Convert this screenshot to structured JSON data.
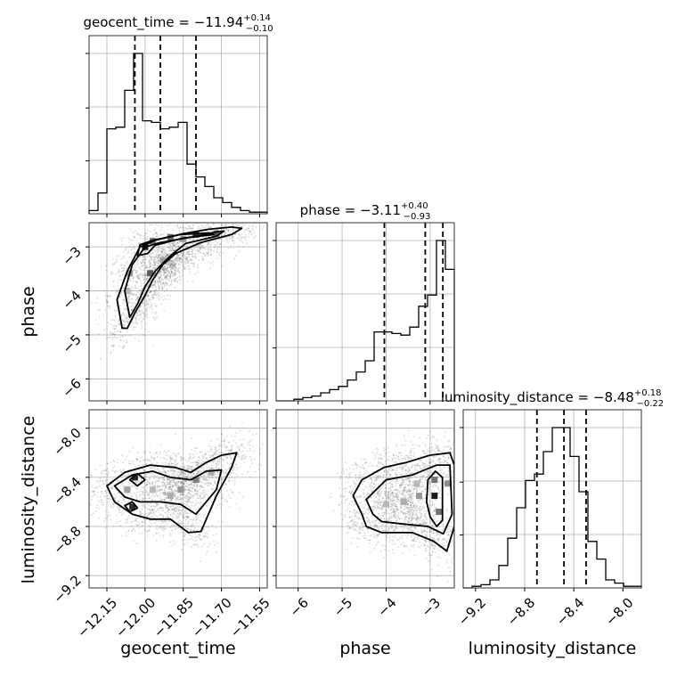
{
  "chart_data": {
    "type": "corner",
    "parameters": [
      {
        "name": "geocent_time",
        "axis_label": "geocent_time",
        "title": {
          "prefix": "geocent_time = ",
          "value": "−11.94",
          "plus": "+0.14",
          "minus": "−0.10"
        },
        "range": [
          -12.22,
          -11.52
        ],
        "ticks": [
          -12.15,
          -12.0,
          -11.85,
          -11.7,
          -11.55
        ],
        "tick_labels": [
          "−12.15",
          "−12.00",
          "−11.85",
          "−11.70",
          "−11.55"
        ],
        "quantiles": [
          -12.04,
          -11.94,
          -11.8
        ],
        "hist": {
          "edges_start": -12.22,
          "bin_width": 0.035,
          "counts": [
            2,
            13,
            53,
            54,
            77,
            100,
            58,
            57,
            53,
            54,
            57,
            31,
            23,
            17,
            10,
            7,
            4,
            2,
            1,
            1
          ]
        }
      },
      {
        "name": "phase",
        "axis_label": "phase",
        "title": {
          "prefix": "phase = ",
          "value": "−3.11",
          "plus": "+0.40",
          "minus": "−0.93"
        },
        "range": [
          -6.5,
          -2.45
        ],
        "ticks": [
          -6,
          -5,
          -4,
          -3
        ],
        "tick_labels": [
          "−6",
          "−5",
          "−4",
          "−3"
        ],
        "quantiles": [
          -4.04,
          -3.11,
          -2.71
        ],
        "hist": {
          "edges_start": -6.5,
          "bin_width": 0.2025,
          "counts": [
            0,
            0,
            1,
            2,
            3,
            5,
            7,
            9,
            13,
            18,
            25,
            43,
            43,
            42,
            41,
            46,
            59,
            66,
            100,
            82
          ]
        }
      },
      {
        "name": "luminosity_distance",
        "axis_label": "luminosity_distance",
        "title": {
          "prefix": "luminosity_distance = ",
          "value": "−8.48",
          "plus": "+0.18",
          "minus": "−0.22"
        },
        "range": [
          -9.3,
          -7.85
        ],
        "ticks": [
          -9.2,
          -8.8,
          -8.4,
          -8.0
        ],
        "tick_labels": [
          "−9.2",
          "−8.8",
          "−8.4",
          "−8.0"
        ],
        "quantiles": [
          -8.7,
          -8.48,
          -8.3
        ],
        "hist": {
          "edges_start": -9.3,
          "bin_width": 0.0725,
          "counts": [
            0,
            1,
            2,
            5,
            14,
            31,
            50,
            67,
            71,
            85,
            100,
            100,
            82,
            60,
            29,
            18,
            5,
            3,
            1,
            1
          ]
        }
      }
    ],
    "pairs": [
      {
        "x": "geocent_time",
        "y": "phase",
        "y_ticks": [
          -6,
          -5,
          -4,
          -3
        ],
        "y_tick_labels": [
          "−6",
          "−5",
          "−4",
          "−3"
        ],
        "contours": [
          [
            [
              -12.09,
              -4.85
            ],
            [
              -12.11,
              -4.2
            ],
            [
              -12.07,
              -3.55
            ],
            [
              -12.02,
              -3.0
            ],
            [
              -11.96,
              -2.85
            ],
            [
              -11.85,
              -2.7
            ],
            [
              -11.75,
              -2.6
            ],
            [
              -11.66,
              -2.55
            ],
            [
              -11.62,
              -2.58
            ],
            [
              -11.66,
              -2.72
            ],
            [
              -11.78,
              -2.9
            ],
            [
              -11.88,
              -3.15
            ],
            [
              -11.93,
              -3.4
            ],
            [
              -11.97,
              -3.75
            ],
            [
              -12.0,
              -4.1
            ],
            [
              -12.04,
              -4.5
            ],
            [
              -12.07,
              -4.85
            ]
          ],
          [
            [
              -12.06,
              -4.6
            ],
            [
              -12.08,
              -4.0
            ],
            [
              -12.05,
              -3.4
            ],
            [
              -12.0,
              -3.0
            ],
            [
              -11.94,
              -2.9
            ],
            [
              -11.82,
              -2.78
            ],
            [
              -11.72,
              -2.66
            ],
            [
              -11.69,
              -2.64
            ],
            [
              -11.72,
              -2.76
            ],
            [
              -11.84,
              -2.92
            ],
            [
              -11.9,
              -3.2
            ],
            [
              -11.96,
              -3.55
            ],
            [
              -12.0,
              -3.9
            ],
            [
              -12.03,
              -4.3
            ]
          ],
          [
            [
              -12.03,
              -3.2
            ],
            [
              -12.02,
              -2.95
            ],
            [
              -11.97,
              -2.85
            ],
            [
              -11.86,
              -2.72
            ],
            [
              -11.75,
              -2.68
            ],
            [
              -11.73,
              -2.72
            ],
            [
              -11.85,
              -2.8
            ],
            [
              -11.96,
              -2.96
            ],
            [
              -11.99,
              -3.15
            ]
          ]
        ],
        "density": [
          {
            "x": -12.0,
            "y": -3.0,
            "w": 0.9
          },
          {
            "x": -11.97,
            "y": -2.87,
            "w": 0.5
          },
          {
            "x": -11.9,
            "y": -2.78,
            "w": 0.55
          },
          {
            "x": -11.8,
            "y": -2.72,
            "w": 0.8
          },
          {
            "x": -11.72,
            "y": -2.7,
            "w": 0.6
          },
          {
            "x": -11.85,
            "y": -2.82,
            "w": 0.35
          },
          {
            "x": -12.06,
            "y": -3.6,
            "w": 0.35
          },
          {
            "x": -11.98,
            "y": -3.6,
            "w": 0.6
          },
          {
            "x": -12.07,
            "y": -4.0,
            "w": 0.2
          },
          {
            "x": -11.93,
            "y": -3.3,
            "w": 0.3
          }
        ]
      },
      {
        "x": "geocent_time",
        "y": "luminosity_distance",
        "y_ticks": [
          -9.2,
          -8.8,
          -8.4,
          -8.0
        ],
        "y_tick_labels": [
          "−9.2",
          "−8.8",
          "−8.4",
          "−8.0"
        ],
        "contours": [
          [
            [
              -12.15,
              -8.47
            ],
            [
              -12.08,
              -8.36
            ],
            [
              -11.98,
              -8.3
            ],
            [
              -11.88,
              -8.32
            ],
            [
              -11.82,
              -8.36
            ],
            [
              -11.76,
              -8.28
            ],
            [
              -11.7,
              -8.22
            ],
            [
              -11.64,
              -8.2
            ],
            [
              -11.66,
              -8.32
            ],
            [
              -11.72,
              -8.55
            ],
            [
              -11.78,
              -8.84
            ],
            [
              -11.83,
              -8.85
            ],
            [
              -11.9,
              -8.74
            ],
            [
              -11.98,
              -8.74
            ],
            [
              -12.05,
              -8.7
            ],
            [
              -12.12,
              -8.6
            ]
          ],
          [
            [
              -12.12,
              -8.47
            ],
            [
              -12.05,
              -8.38
            ],
            [
              -11.97,
              -8.35
            ],
            [
              -11.9,
              -8.4
            ],
            [
              -11.82,
              -8.42
            ],
            [
              -11.76,
              -8.35
            ],
            [
              -11.7,
              -8.34
            ],
            [
              -11.72,
              -8.5
            ],
            [
              -11.8,
              -8.7
            ],
            [
              -11.86,
              -8.62
            ],
            [
              -11.94,
              -8.6
            ],
            [
              -12.02,
              -8.6
            ],
            [
              -12.08,
              -8.56
            ]
          ],
          [
            [
              -12.06,
              -8.42
            ],
            [
              -12.03,
              -8.37
            ],
            [
              -12.0,
              -8.42
            ],
            [
              -12.03,
              -8.47
            ]
          ],
          [
            [
              -12.08,
              -8.63
            ],
            [
              -12.05,
              -8.6
            ],
            [
              -12.03,
              -8.65
            ],
            [
              -12.06,
              -8.68
            ]
          ]
        ],
        "density": [
          {
            "x": -12.04,
            "y": -8.4,
            "w": 0.85
          },
          {
            "x": -12.05,
            "y": -8.64,
            "w": 0.8
          },
          {
            "x": -12.07,
            "y": -8.5,
            "w": 0.3
          },
          {
            "x": -11.97,
            "y": -8.5,
            "w": 0.2
          },
          {
            "x": -11.86,
            "y": -8.5,
            "w": 0.35
          },
          {
            "x": -11.8,
            "y": -8.42,
            "w": 0.45
          },
          {
            "x": -11.74,
            "y": -8.36,
            "w": 0.25
          },
          {
            "x": -11.9,
            "y": -8.55,
            "w": 0.25
          }
        ]
      },
      {
        "x": "phase",
        "y": "luminosity_distance",
        "y_ticks": [
          -9.2,
          -8.8,
          -8.4,
          -8.0
        ],
        "y_tick_labels": [
          "−9.2",
          "−8.8",
          "−8.4",
          "−8.0"
        ],
        "contours": [
          [
            [
              -4.75,
              -8.55
            ],
            [
              -4.55,
              -8.42
            ],
            [
              -4.05,
              -8.32
            ],
            [
              -3.55,
              -8.28
            ],
            [
              -3.0,
              -8.22
            ],
            [
              -2.55,
              -8.2
            ],
            [
              -2.45,
              -8.3
            ],
            [
              -2.45,
              -8.8
            ],
            [
              -2.62,
              -9.0
            ],
            [
              -2.92,
              -8.92
            ],
            [
              -3.4,
              -8.85
            ],
            [
              -4.1,
              -8.85
            ],
            [
              -4.45,
              -8.8
            ],
            [
              -4.55,
              -8.7
            ]
          ],
          [
            [
              -4.45,
              -8.58
            ],
            [
              -4.0,
              -8.42
            ],
            [
              -3.4,
              -8.38
            ],
            [
              -2.85,
              -8.3
            ],
            [
              -2.55,
              -8.3
            ],
            [
              -2.5,
              -8.7
            ],
            [
              -2.7,
              -8.86
            ],
            [
              -3.05,
              -8.8
            ],
            [
              -3.6,
              -8.78
            ],
            [
              -4.1,
              -8.76
            ],
            [
              -4.3,
              -8.7
            ]
          ],
          [
            [
              -3.05,
              -8.42
            ],
            [
              -2.88,
              -8.35
            ],
            [
              -2.72,
              -8.4
            ],
            [
              -2.72,
              -8.75
            ],
            [
              -2.85,
              -8.8
            ],
            [
              -3.0,
              -8.72
            ],
            [
              -3.08,
              -8.6
            ]
          ]
        ],
        "density": [
          {
            "x": -2.9,
            "y": -8.55,
            "w": 0.9
          },
          {
            "x": -2.9,
            "y": -8.42,
            "w": 0.5
          },
          {
            "x": -2.8,
            "y": -8.68,
            "w": 0.5
          },
          {
            "x": -3.25,
            "y": -8.55,
            "w": 0.35
          },
          {
            "x": -3.6,
            "y": -8.6,
            "w": 0.25
          },
          {
            "x": -4.0,
            "y": -8.62,
            "w": 0.2
          },
          {
            "x": -3.3,
            "y": -8.45,
            "w": 0.2
          },
          {
            "x": -2.6,
            "y": -8.45,
            "w": 0.4
          }
        ]
      }
    ]
  }
}
